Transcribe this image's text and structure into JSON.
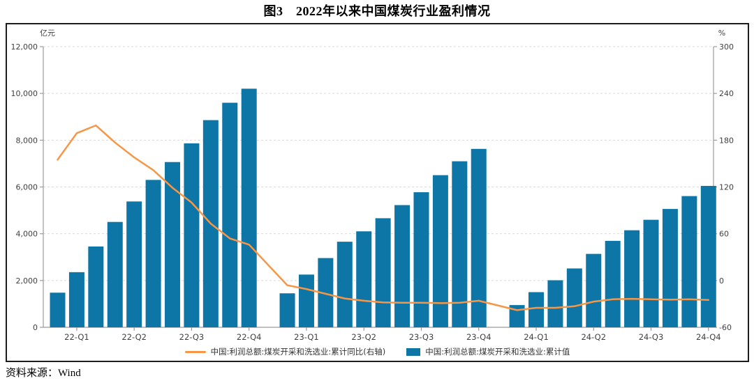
{
  "title": "图3　2022年以来中国煤炭行业盈利情况",
  "source_note": "资料来源：Wind",
  "colors": {
    "bar": "#0d76a6",
    "line": "#f79646",
    "grid": "#d9d9d9",
    "axis": "#9b9b9b",
    "tick_text": "#404040",
    "frame": "#1c1c1c"
  },
  "legend": [
    {
      "type": "line",
      "color": "#f79646",
      "label": "中国:利润总额:煤炭开采和洗选业:累计同比(右轴)"
    },
    {
      "type": "bar",
      "color": "#0d76a6",
      "label": "中国:利润总额:煤炭开采和洗选业:累计值"
    }
  ],
  "chart_data": {
    "type": "bar+line",
    "slots": 35,
    "note": "monthly cumulative series Feb2022-Dec2024; empty slots are January (no data published)",
    "left_axis": {
      "unit": "亿元",
      "min": 0,
      "max": 12000,
      "step": 2000,
      "tick_labels": [
        "0",
        "2,000",
        "4,000",
        "6,000",
        "8,000",
        "10,000",
        "12,000"
      ]
    },
    "right_axis": {
      "unit": "%",
      "min": -60,
      "max": 300,
      "step": 60,
      "tick_labels": [
        "-60",
        "0",
        "60",
        "120",
        "180",
        "240",
        "300"
      ]
    },
    "x_tick_slots": [
      1,
      4,
      7,
      10,
      13,
      16,
      19,
      22,
      25,
      28,
      31,
      34
    ],
    "x_tick_labels": [
      "22-Q1",
      "22-Q2",
      "22-Q3",
      "22-Q4",
      "23-Q1",
      "23-Q2",
      "23-Q3",
      "23-Q4",
      "24-Q1",
      "24-Q2",
      "24-Q3",
      "24-Q4"
    ],
    "bar_series": {
      "name": "中国:利润总额:煤炭开采和洗选业:累计值",
      "axis": "left",
      "values": [
        1480,
        2357,
        3454,
        4505,
        5380,
        6302,
        7066,
        7866,
        8858,
        9602,
        10202,
        null,
        1453,
        2254,
        2960,
        3659,
        4103,
        4663,
        5225,
        5775,
        6505,
        7099,
        7629,
        null,
        950,
        1503,
        2011,
        2516,
        3139,
        3696,
        4149,
        4597,
        5060,
        5610,
        6046
      ]
    },
    "line_series": {
      "name": "中国:利润总额:煤炭开采和洗选业:累计同比(右轴)",
      "axis": "right",
      "values": [
        155,
        189,
        199,
        177,
        158,
        141.6,
        119,
        100,
        73,
        54,
        46,
        null,
        -6,
        -11,
        -17,
        -23,
        -26,
        -28,
        -28.5,
        -28.5,
        -29,
        -28.5,
        -26,
        null,
        -38,
        -35,
        -35,
        -33,
        -27,
        -24,
        -23.5,
        -24,
        -24.5,
        -24,
        -25
      ]
    }
  }
}
